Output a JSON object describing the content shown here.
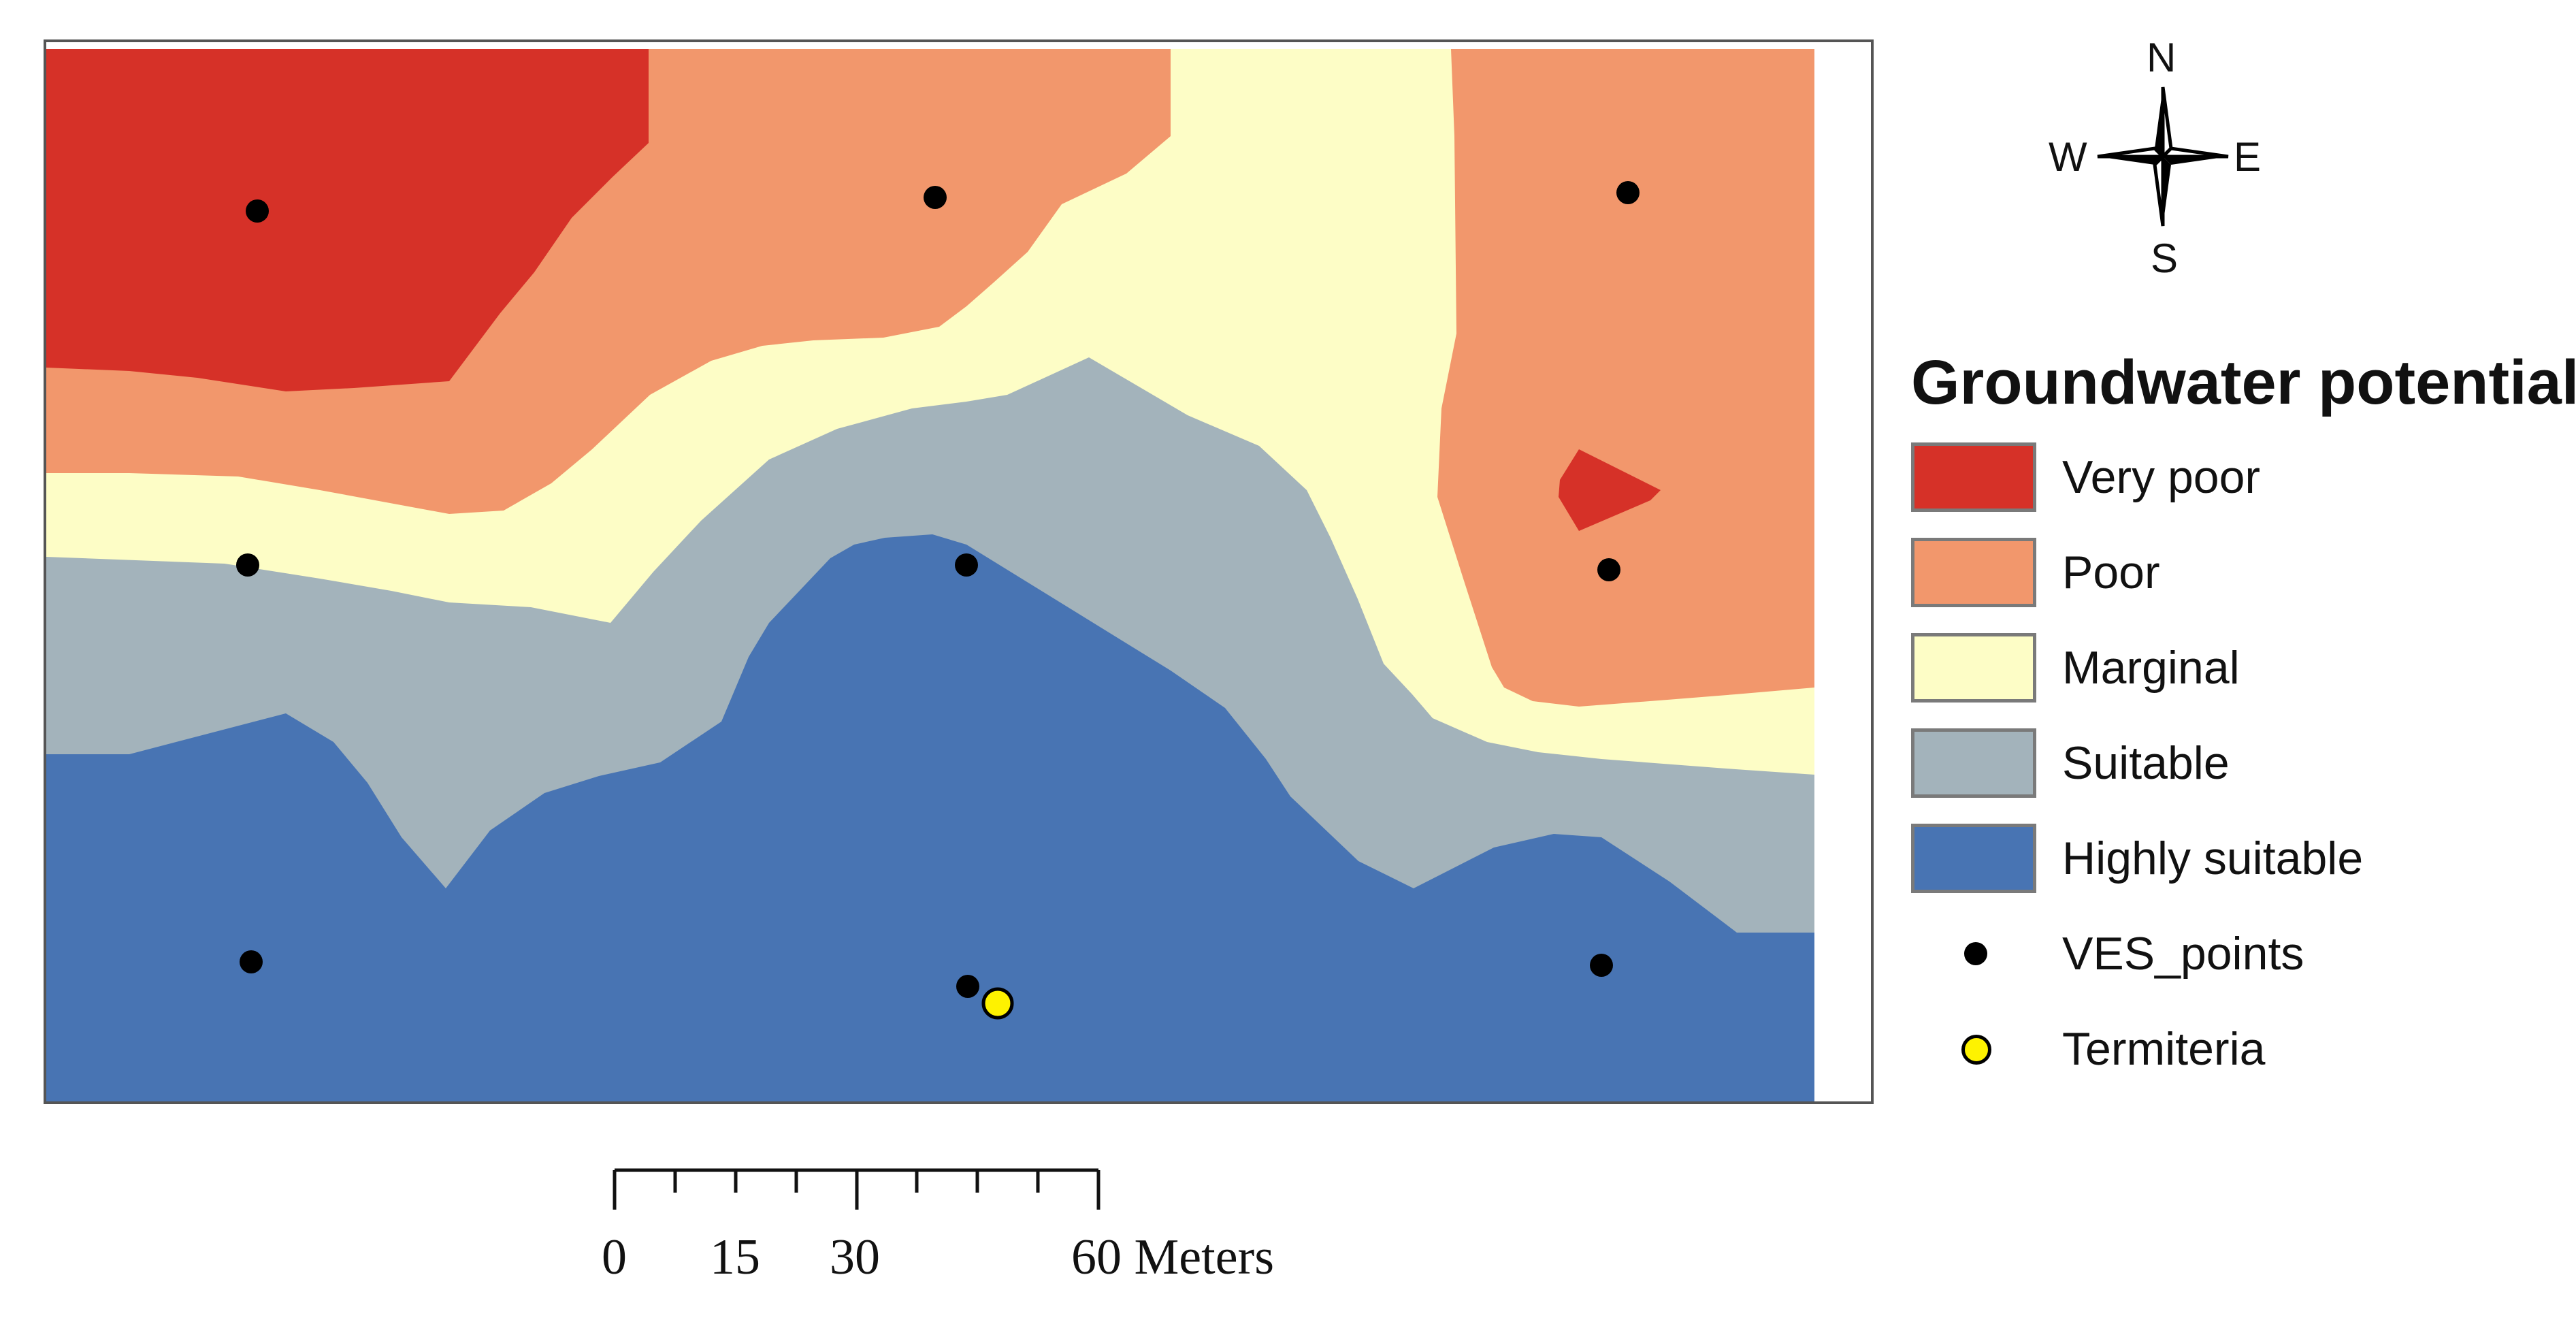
{
  "map": {
    "zones": [
      {
        "class": "Highly suitable",
        "color": "#4874b3"
      },
      {
        "class": "Suitable",
        "color": "#a3b3bb"
      },
      {
        "class": "Marginal",
        "color": "#fdfdc6"
      },
      {
        "class": "Poor",
        "color": "#f2976c"
      },
      {
        "class": "Very poor",
        "color": "#d63128"
      }
    ],
    "ves_point_count": 9,
    "termiteria_count": 1
  },
  "compass": {
    "north": "N",
    "south": "S",
    "east": "E",
    "west": "W"
  },
  "legend": {
    "title": "Groundwater potential",
    "items": [
      {
        "label": "Very poor",
        "color": "#d63128"
      },
      {
        "label": "Poor",
        "color": "#f2976c"
      },
      {
        "label": "Marginal",
        "color": "#fdfdc6"
      },
      {
        "label": "Suitable",
        "color": "#a3b3bb"
      },
      {
        "label": "Highly suitable",
        "color": "#4874b3"
      }
    ],
    "ves_label": "VES_points",
    "termiteria_label": "Termiteria"
  },
  "scale_bar": {
    "ticks": [
      "0",
      "15",
      "30"
    ],
    "end_label": "60 Meters",
    "unit": "Meters"
  }
}
